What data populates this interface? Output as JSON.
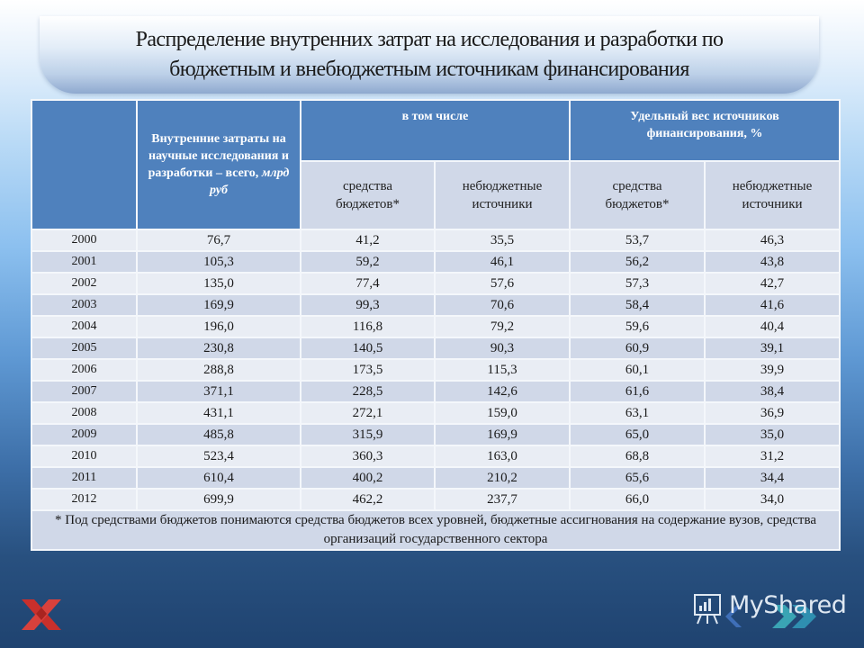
{
  "title": {
    "line1": "Распределение внутренних затрат на исследования и разработки по",
    "line2": "бюджетным и внебюджетным источникам финансирования"
  },
  "table": {
    "header": {
      "col_total": "Внутренние затраты на научные исследования и разработки – всего, ",
      "col_total_unit": "млрд руб",
      "group_incl": "в том числе",
      "group_share": "Удельный вес источников финансирования, %",
      "sub_budget": "средства бюджетов*",
      "sub_nonbudget": "небюджетные источники",
      "sub_budget_pct": "средства бюджетов*",
      "sub_nonbudget_pct": "небюджетные источники"
    },
    "rows": [
      {
        "year": "2000",
        "total": "76,7",
        "budget": "41,2",
        "nonbudget": "35,5",
        "budget_pct": "53,7",
        "nonbudget_pct": "46,3"
      },
      {
        "year": "2001",
        "total": "105,3",
        "budget": "59,2",
        "nonbudget": "46,1",
        "budget_pct": "56,2",
        "nonbudget_pct": "43,8"
      },
      {
        "year": "2002",
        "total": "135,0",
        "budget": "77,4",
        "nonbudget": "57,6",
        "budget_pct": "57,3",
        "nonbudget_pct": "42,7"
      },
      {
        "year": "2003",
        "total": "169,9",
        "budget": "99,3",
        "nonbudget": "70,6",
        "budget_pct": "58,4",
        "nonbudget_pct": "41,6"
      },
      {
        "year": "2004",
        "total": "196,0",
        "budget": "116,8",
        "nonbudget": "79,2",
        "budget_pct": "59,6",
        "nonbudget_pct": "40,4"
      },
      {
        "year": "2005",
        "total": "230,8",
        "budget": "140,5",
        "nonbudget": "90,3",
        "budget_pct": "60,9",
        "nonbudget_pct": "39,1"
      },
      {
        "year": "2006",
        "total": "288,8",
        "budget": "173,5",
        "nonbudget": "115,3",
        "budget_pct": "60,1",
        "nonbudget_pct": "39,9"
      },
      {
        "year": "2007",
        "total": "371,1",
        "budget": "228,5",
        "nonbudget": "142,6",
        "budget_pct": "61,6",
        "nonbudget_pct": "38,4"
      },
      {
        "year": "2008",
        "total": "431,1",
        "budget": "272,1",
        "nonbudget": "159,0",
        "budget_pct": "63,1",
        "nonbudget_pct": "36,9"
      },
      {
        "year": "2009",
        "total": "485,8",
        "budget": "315,9",
        "nonbudget": "169,9",
        "budget_pct": "65,0",
        "nonbudget_pct": "35,0"
      },
      {
        "year": "2010",
        "total": "523,4",
        "budget": "360,3",
        "nonbudget": "163,0",
        "budget_pct": "68,8",
        "nonbudget_pct": "31,2"
      },
      {
        "year": "2011",
        "total": "610,4",
        "budget": "400,2",
        "nonbudget": "210,2",
        "budget_pct": "65,6",
        "nonbudget_pct": "34,4"
      },
      {
        "year": "2012",
        "total": "699,9",
        "budget": "462,2",
        "nonbudget": "237,7",
        "budget_pct": "66,0",
        "nonbudget_pct": "34,0"
      }
    ],
    "footnote": "* Под средствами бюджетов понимаются средства бюджетов всех уровней, бюджетные ассигнования на содержание вузов, средства организаций государственного сектора"
  },
  "branding": {
    "watermark": "MyShared",
    "left_logo_icon": "red-x-logo-icon",
    "right_logo_icon": "presentation-board-icon"
  },
  "colors": {
    "header_blue": "#4f81bd",
    "subheader": "#d0d8e8",
    "row_light": "#e9edf4",
    "row_dark": "#d0d8e8",
    "logo_red": "#c9302c"
  }
}
